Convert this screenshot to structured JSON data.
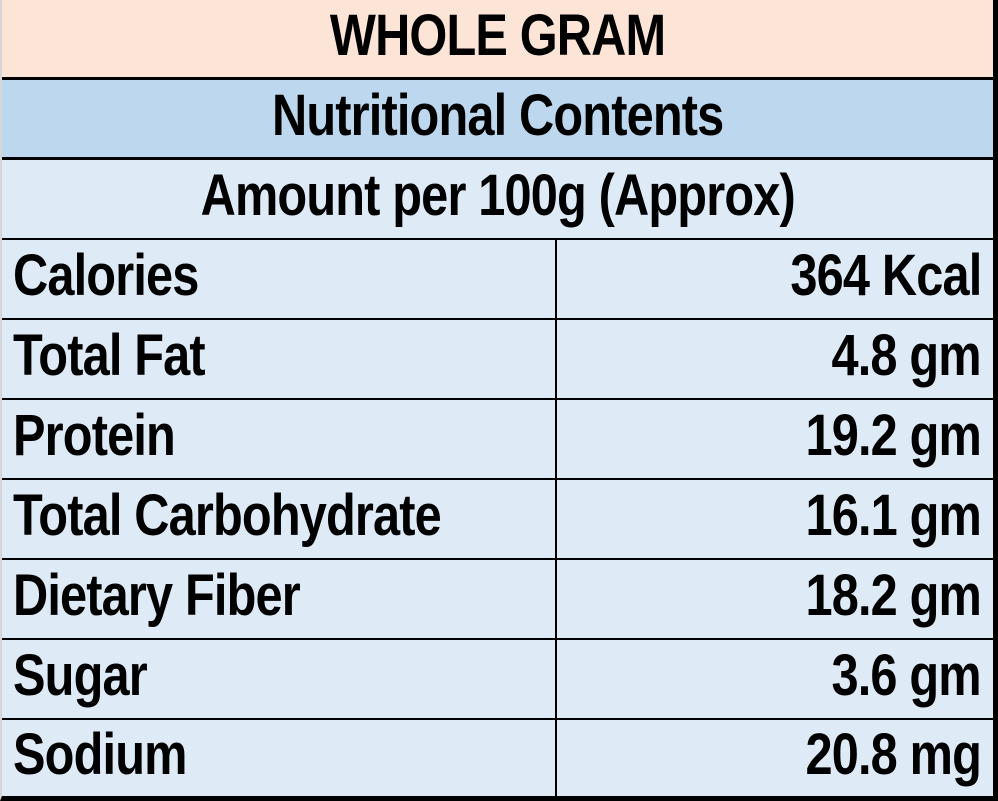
{
  "title": "WHOLE GRAM",
  "section_header": "Nutritional Contents",
  "amount_header": "Amount per 100g (Approx)",
  "rows": [
    {
      "label": "Calories",
      "value": "364 Kcal"
    },
    {
      "label": "Total Fat",
      "value": "4.8 gm"
    },
    {
      "label": "Protein",
      "value": "19.2 gm"
    },
    {
      "label": "Total Carbohydrate",
      "value": "16.1 gm"
    },
    {
      "label": "Dietary Fiber",
      "value": "18.2 gm"
    },
    {
      "label": "Sugar",
      "value": "3.6 gm"
    },
    {
      "label": "Sodium",
      "value": "20.8 mg"
    }
  ],
  "colors": {
    "title_bg": "#FCE4D6",
    "section_bg": "#BDD7EE",
    "body_bg": "#DEEAF6",
    "border": "#000000",
    "text": "#000000",
    "left_edge_strip": "#D6D6D6"
  }
}
